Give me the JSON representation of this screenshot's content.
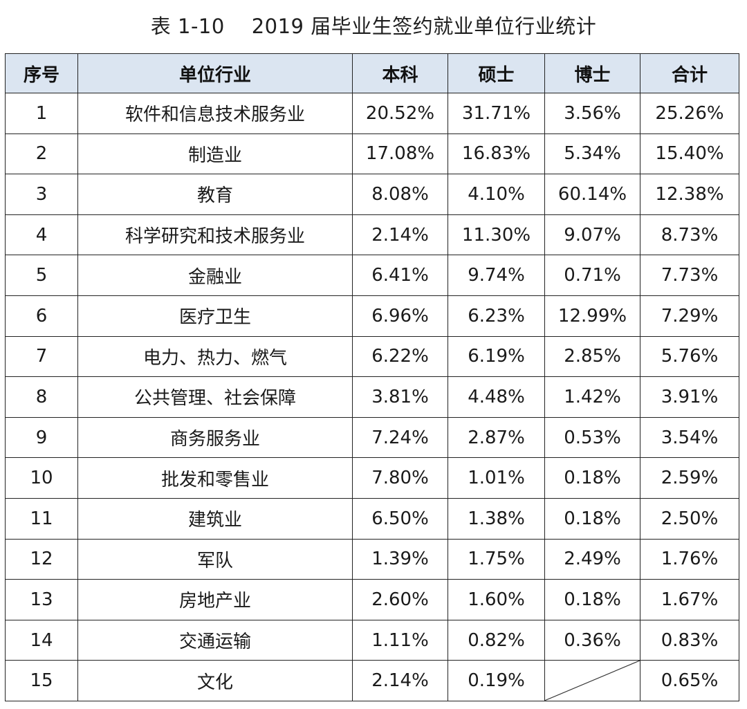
{
  "document": {
    "title": "表 1-10    2019 届毕业生签约就业单位行业统计"
  },
  "table": {
    "headers": [
      "序号",
      "单位行业",
      "本科",
      "硕士",
      "博士",
      "合计"
    ],
    "rows": [
      {
        "no": "1",
        "industry": "软件和信息技术服务业",
        "bachelor": "20.52%",
        "master": "31.71%",
        "doctor": "3.56%",
        "total": "25.26%"
      },
      {
        "no": "2",
        "industry": "制造业",
        "bachelor": "17.08%",
        "master": "16.83%",
        "doctor": "5.34%",
        "total": "15.40%"
      },
      {
        "no": "3",
        "industry": "教育",
        "bachelor": "8.08%",
        "master": "4.10%",
        "doctor": "60.14%",
        "total": "12.38%"
      },
      {
        "no": "4",
        "industry": "科学研究和技术服务业",
        "bachelor": "2.14%",
        "master": "11.30%",
        "doctor": "9.07%",
        "total": "8.73%"
      },
      {
        "no": "5",
        "industry": "金融业",
        "bachelor": "6.41%",
        "master": "9.74%",
        "doctor": "0.71%",
        "total": "7.73%"
      },
      {
        "no": "6",
        "industry": "医疗卫生",
        "bachelor": "6.96%",
        "master": "6.23%",
        "doctor": "12.99%",
        "total": "7.29%"
      },
      {
        "no": "7",
        "industry": "电力、热力、燃气",
        "bachelor": "6.22%",
        "master": "6.19%",
        "doctor": "2.85%",
        "total": "5.76%"
      },
      {
        "no": "8",
        "industry": "公共管理、社会保障",
        "bachelor": "3.81%",
        "master": "4.48%",
        "doctor": "1.42%",
        "total": "3.91%"
      },
      {
        "no": "9",
        "industry": "商务服务业",
        "bachelor": "7.24%",
        "master": "2.87%",
        "doctor": "0.53%",
        "total": "3.54%"
      },
      {
        "no": "10",
        "industry": "批发和零售业",
        "bachelor": "7.80%",
        "master": "1.01%",
        "doctor": "0.18%",
        "total": "2.59%"
      },
      {
        "no": "11",
        "industry": "建筑业",
        "bachelor": "6.50%",
        "master": "1.38%",
        "doctor": "0.18%",
        "total": "2.50%"
      },
      {
        "no": "12",
        "industry": "军队",
        "bachelor": "1.39%",
        "master": "1.75%",
        "doctor": "2.49%",
        "total": "1.76%"
      },
      {
        "no": "13",
        "industry": "房地产业",
        "bachelor": "2.60%",
        "master": "1.60%",
        "doctor": "0.18%",
        "total": "1.67%"
      },
      {
        "no": "14",
        "industry": "交通运输",
        "bachelor": "1.11%",
        "master": "0.82%",
        "doctor": "0.36%",
        "total": "0.83%"
      },
      {
        "no": "15",
        "industry": "文化",
        "bachelor": "2.14%",
        "master": "0.19%",
        "doctor": "",
        "total": "0.65%"
      }
    ]
  },
  "colors": {
    "header_background": "#dbe5f1",
    "border": "#222222"
  }
}
